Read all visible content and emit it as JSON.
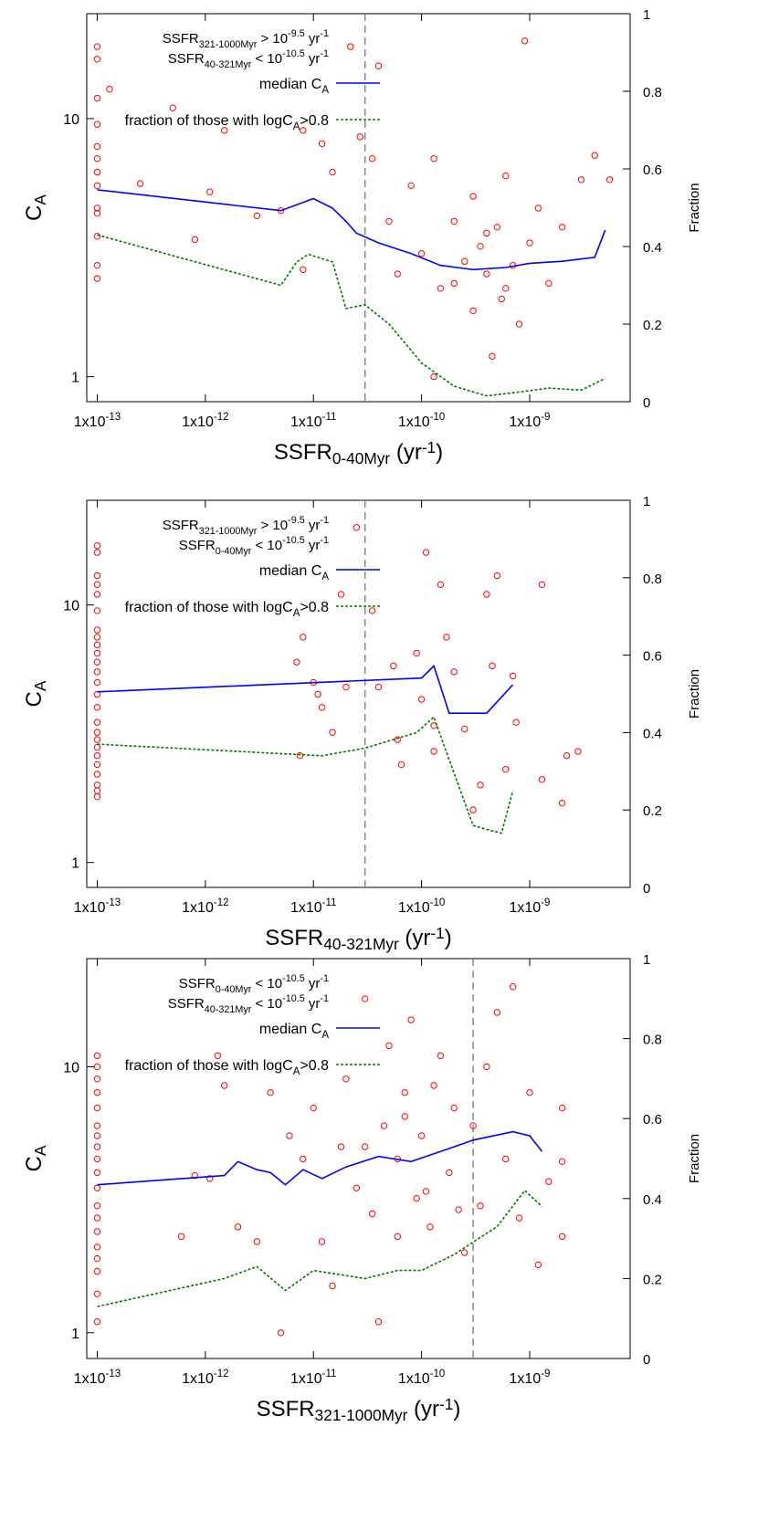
{
  "chart_data": [
    {
      "type": "scatter",
      "log_x": true,
      "log_y": true,
      "annotations": [
        [
          {
            "t": "SSFR"
          },
          {
            "sub": "321-1000Myr"
          },
          {
            "t": " > 10"
          },
          {
            "sup": "-9.5"
          },
          {
            "t": " yr"
          },
          {
            "sup": "-1"
          }
        ],
        [
          {
            "t": "SSFR"
          },
          {
            "sub": "40-321Myr"
          },
          {
            "t": " < 10"
          },
          {
            "sup": "-10.5"
          },
          {
            "t": " yr"
          },
          {
            "sup": "-1"
          }
        ]
      ],
      "xlabel": [
        {
          "t": "SSFR"
        },
        {
          "sub": "0-40Myr"
        },
        {
          "t": " (yr"
        },
        {
          "sup": "-1"
        },
        {
          "t": ")"
        }
      ],
      "ylabel": [
        {
          "t": "C"
        },
        {
          "sub": "A"
        }
      ],
      "y2label": "Fraction",
      "xlim": [
        8e-14,
        8.5e-09
      ],
      "ylim": [
        0.8,
        25.5
      ],
      "y2lim": [
        0,
        1
      ],
      "xticks": [
        {
          "value": 1e-13,
          "label": [
            {
              "t": "1x10"
            },
            {
              "sup": "-13"
            }
          ]
        },
        {
          "value": 1e-12,
          "label": [
            {
              "t": "1x10"
            },
            {
              "sup": "-12"
            }
          ]
        },
        {
          "value": 1e-11,
          "label": [
            {
              "t": "1x10"
            },
            {
              "sup": "-11"
            }
          ]
        },
        {
          "value": 1e-10,
          "label": [
            {
              "t": "1x10"
            },
            {
              "sup": "-10"
            }
          ]
        },
        {
          "value": 1e-09,
          "label": [
            {
              "t": "1x10"
            },
            {
              "sup": "-9"
            }
          ]
        }
      ],
      "yticks": [
        1,
        10
      ],
      "y2ticks": [
        0,
        0.2,
        0.4,
        0.6,
        0.8,
        1
      ],
      "vline": 3e-11,
      "series": [
        {
          "type": "scatter",
          "color": "#ff0000",
          "x": [
            1e-13,
            1e-13,
            1e-13,
            1e-13,
            1e-13,
            1e-13,
            1e-13,
            1e-13,
            1e-13,
            1e-13,
            1e-13,
            1e-13,
            1e-13,
            1.3e-13,
            2.5e-13,
            5e-13,
            8e-13,
            1.1e-12,
            1.5e-12,
            3e-12,
            5e-12,
            8e-12,
            1.2e-11,
            1.5e-11,
            2.2e-11,
            2.7e-11,
            3.5e-11,
            4e-11,
            5e-11,
            6e-11,
            8e-11,
            1e-10,
            1.3e-10,
            1.5e-10,
            2e-10,
            2.5e-10,
            3e-10,
            3.5e-10,
            4e-10,
            4.5e-10,
            5e-10,
            5.5e-10,
            6e-10,
            7e-10,
            8e-10,
            9e-10,
            1e-09,
            1.2e-09,
            1.5e-09,
            2e-09,
            3e-09,
            4e-09,
            5.5e-09,
            3e-10,
            2e-10,
            4e-10,
            6e-10,
            1.3e-10,
            8e-12
          ],
          "values": [
            19,
            17,
            12,
            9.5,
            7.8,
            7,
            6.2,
            5.5,
            4.5,
            4.3,
            3.5,
            2.7,
            2.4,
            13,
            5.6,
            11,
            3.4,
            5.2,
            9,
            4.2,
            4.4,
            9,
            8,
            6.2,
            19,
            8.5,
            7,
            16,
            4,
            2.5,
            5.5,
            3,
            7,
            2.2,
            4,
            2.8,
            1.8,
            3.2,
            2.5,
            1.2,
            3.8,
            2,
            6,
            2.7,
            1.6,
            20,
            3.3,
            4.5,
            2.3,
            3.8,
            5.8,
            7.2,
            5.8,
            5,
            2.3,
            3.6,
            2.2,
            1,
            2.6
          ]
        },
        {
          "type": "line",
          "name": [
            {
              "t": "median C"
            },
            {
              "sub": "A"
            }
          ],
          "color": "#0000ff",
          "style": "solid",
          "x": [
            1e-13,
            5e-12,
            1e-11,
            1.5e-11,
            2e-11,
            2.5e-11,
            4e-11,
            8e-11,
            1.5e-10,
            3e-10,
            6e-10,
            1e-09,
            2e-09,
            4e-09,
            5e-09
          ],
          "values": [
            5.3,
            4.4,
            4.9,
            4.5,
            4,
            3.6,
            3.3,
            3,
            2.7,
            2.6,
            2.65,
            2.75,
            2.8,
            2.9,
            3.7
          ]
        },
        {
          "type": "line",
          "axis": "y2",
          "name": [
            {
              "t": "fraction of those with logC"
            },
            {
              "sub": "A"
            },
            {
              "t": ">0.8"
            }
          ],
          "color": "#007700",
          "style": "dotted",
          "x": [
            1e-13,
            5e-12,
            7e-12,
            9e-12,
            1.5e-11,
            2e-11,
            3e-11,
            5e-11,
            1e-10,
            2e-10,
            4e-10,
            8e-10,
            1.5e-09,
            3e-09,
            5e-09
          ],
          "values": [
            0.43,
            0.3,
            0.36,
            0.38,
            0.36,
            0.24,
            0.25,
            0.2,
            0.1,
            0.04,
            0.015,
            0.025,
            0.035,
            0.03,
            0.06
          ]
        }
      ]
    },
    {
      "type": "scatter",
      "log_x": true,
      "log_y": true,
      "annotations": [
        [
          {
            "t": "SSFR"
          },
          {
            "sub": "321-1000Myr"
          },
          {
            "t": " > 10"
          },
          {
            "sup": "-9.5"
          },
          {
            "t": " yr"
          },
          {
            "sup": "-1"
          }
        ],
        [
          {
            "t": "SSFR"
          },
          {
            "sub": "0-40Myr"
          },
          {
            "t": " < 10"
          },
          {
            "sup": "-10.5"
          },
          {
            "t": " yr"
          },
          {
            "sup": "-1"
          }
        ]
      ],
      "xlabel": [
        {
          "t": "SSFR"
        },
        {
          "sub": "40-321Myr"
        },
        {
          "t": " (yr"
        },
        {
          "sup": "-1"
        },
        {
          "t": ")"
        }
      ],
      "ylabel": [
        {
          "t": "C"
        },
        {
          "sub": "A"
        }
      ],
      "y2label": "Fraction",
      "xlim": [
        8e-14,
        8.5e-09
      ],
      "ylim": [
        0.8,
        25.5
      ],
      "y2lim": [
        0,
        1
      ],
      "xticks": [
        {
          "value": 1e-13,
          "label": [
            {
              "t": "1x10"
            },
            {
              "sup": "-13"
            }
          ]
        },
        {
          "value": 1e-12,
          "label": [
            {
              "t": "1x10"
            },
            {
              "sup": "-12"
            }
          ]
        },
        {
          "value": 1e-11,
          "label": [
            {
              "t": "1x10"
            },
            {
              "sup": "-11"
            }
          ]
        },
        {
          "value": 1e-10,
          "label": [
            {
              "t": "1x10"
            },
            {
              "sup": "-10"
            }
          ]
        },
        {
          "value": 1e-09,
          "label": [
            {
              "t": "1x10"
            },
            {
              "sup": "-9"
            }
          ]
        }
      ],
      "yticks": [
        1,
        10
      ],
      "y2ticks": [
        0,
        0.2,
        0.4,
        0.6,
        0.8,
        1
      ],
      "vline": 3e-11,
      "series": [
        {
          "type": "scatter",
          "color": "#ff0000",
          "x": [
            1e-13,
            1e-13,
            1e-13,
            1e-13,
            1e-13,
            1e-13,
            1e-13,
            1e-13,
            1e-13,
            1e-13,
            1e-13,
            1e-13,
            1e-13,
            1e-13,
            1e-13,
            1e-13,
            1e-13,
            1e-13,
            1e-13,
            1e-13,
            1e-13,
            1e-13,
            1e-13,
            1e-13,
            1e-13,
            7e-12,
            7.5e-12,
            8e-12,
            1e-11,
            1.1e-11,
            1.2e-11,
            1.5e-11,
            1.8e-11,
            2e-11,
            2.5e-11,
            3.5e-11,
            4e-11,
            5.5e-11,
            6e-11,
            6.5e-11,
            9e-11,
            1e-10,
            1.1e-10,
            1.3e-10,
            1.5e-10,
            1.7e-10,
            2e-10,
            2.5e-10,
            3e-10,
            3.5e-10,
            4e-10,
            4.5e-10,
            5e-10,
            6e-10,
            7e-10,
            7.5e-10,
            1.3e-09,
            1.3e-09,
            2e-09,
            2.2e-09,
            2.8e-09,
            1.3e-10
          ],
          "values": [
            17,
            16,
            13,
            12,
            11,
            9.5,
            8,
            7.5,
            7,
            6.5,
            6,
            5.5,
            5,
            4.5,
            4,
            3.5,
            3.2,
            3,
            2.8,
            2.6,
            2.4,
            2.2,
            2,
            1.9,
            1.8,
            6,
            2.6,
            7.5,
            5,
            4.5,
            4,
            3.2,
            11,
            4.8,
            20,
            9.5,
            4.8,
            5.8,
            3,
            2.4,
            6.5,
            4.3,
            16,
            3.4,
            12,
            7.5,
            5.5,
            3.3,
            1.6,
            2,
            11,
            5.8,
            13,
            2.3,
            5.3,
            3.5,
            12,
            2.1,
            1.7,
            2.6,
            2.7,
            2.7
          ]
        },
        {
          "type": "line",
          "name": [
            {
              "t": "median C"
            },
            {
              "sub": "A"
            }
          ],
          "color": "#0000ff",
          "style": "solid",
          "x": [
            1e-13,
            1e-10,
            1.3e-10,
            1.8e-10,
            4e-10,
            7e-10
          ],
          "values": [
            4.6,
            5.2,
            5.8,
            3.8,
            3.8,
            4.9
          ]
        },
        {
          "type": "line",
          "axis": "y2",
          "name": [
            {
              "t": "fraction of those with logC"
            },
            {
              "sub": "A"
            },
            {
              "t": ">0.8"
            }
          ],
          "color": "#007700",
          "style": "dotted",
          "x": [
            1e-13,
            1.2e-11,
            3e-11,
            9e-11,
            1.3e-10,
            1.8e-10,
            3e-10,
            4e-10,
            5.5e-10,
            7e-10
          ],
          "values": [
            0.37,
            0.34,
            0.36,
            0.4,
            0.44,
            0.33,
            0.16,
            0.15,
            0.14,
            0.25
          ]
        }
      ]
    },
    {
      "type": "scatter",
      "log_x": true,
      "log_y": true,
      "annotations": [
        [
          {
            "t": "SSFR"
          },
          {
            "sub": "0-40Myr"
          },
          {
            "t": " < 10"
          },
          {
            "sup": "-10.5"
          },
          {
            "t": " yr"
          },
          {
            "sup": "-1"
          }
        ],
        [
          {
            "t": "SSFR"
          },
          {
            "sub": "40-321Myr"
          },
          {
            "t": " < 10"
          },
          {
            "sup": "-10.5"
          },
          {
            "t": " yr"
          },
          {
            "sup": "-1"
          }
        ]
      ],
      "xlabel": [
        {
          "t": "SSFR"
        },
        {
          "sub": "321-1000Myr"
        },
        {
          "t": " (yr"
        },
        {
          "sup": "-1"
        },
        {
          "t": ")"
        }
      ],
      "ylabel": [
        {
          "t": "C"
        },
        {
          "sub": "A"
        }
      ],
      "y2label": "Fraction",
      "xlim": [
        8e-14,
        8.5e-09
      ],
      "ylim": [
        0.8,
        25.5
      ],
      "y2lim": [
        0,
        1
      ],
      "xticks": [
        {
          "value": 1e-13,
          "label": [
            {
              "t": "1x10"
            },
            {
              "sup": "-13"
            }
          ]
        },
        {
          "value": 1e-12,
          "label": [
            {
              "t": "1x10"
            },
            {
              "sup": "-12"
            }
          ]
        },
        {
          "value": 1e-11,
          "label": [
            {
              "t": "1x10"
            },
            {
              "sup": "-11"
            }
          ]
        },
        {
          "value": 1e-10,
          "label": [
            {
              "t": "1x10"
            },
            {
              "sup": "-10"
            }
          ]
        },
        {
          "value": 1e-09,
          "label": [
            {
              "t": "1x10"
            },
            {
              "sup": "-9"
            }
          ]
        }
      ],
      "yticks": [
        1,
        10
      ],
      "y2ticks": [
        0,
        0.2,
        0.4,
        0.6,
        0.8,
        1
      ],
      "vline": 3e-10,
      "series": [
        {
          "type": "scatter",
          "color": "#ff0000",
          "x": [
            1e-13,
            1e-13,
            1e-13,
            1e-13,
            1e-13,
            1e-13,
            1e-13,
            1e-13,
            1e-13,
            1e-13,
            1e-13,
            1e-13,
            1e-13,
            1e-13,
            1e-13,
            1e-13,
            1e-13,
            1e-13,
            1e-13,
            6e-13,
            8e-13,
            1.1e-12,
            1.3e-12,
            1.5e-12,
            2e-12,
            3e-12,
            4e-12,
            5e-12,
            6e-12,
            8e-12,
            1e-11,
            1.2e-11,
            1.5e-11,
            2e-11,
            2.5e-11,
            3e-11,
            3.5e-11,
            4e-11,
            4.5e-11,
            5e-11,
            6e-11,
            7e-11,
            8e-11,
            9e-11,
            1e-10,
            1.2e-10,
            1.5e-10,
            1.8e-10,
            2e-10,
            2.5e-10,
            3e-10,
            3.5e-10,
            4e-10,
            5e-10,
            6e-10,
            7e-10,
            8e-10,
            1e-09,
            1.2e-09,
            1.5e-09,
            2e-09,
            2e-09,
            2e-09,
            1.8e-11,
            6e-11,
            1.1e-10,
            2.2e-10,
            3e-11,
            7e-11,
            1.3e-10
          ],
          "values": [
            11,
            10,
            9,
            8,
            7,
            6,
            5.5,
            5,
            4.5,
            4,
            3.5,
            3,
            2.7,
            2.4,
            2.1,
            1.9,
            1.7,
            1.4,
            1.1,
            2.3,
            3.9,
            3.8,
            11,
            8.5,
            2.5,
            2.2,
            8,
            1,
            5.5,
            4.5,
            7,
            2.2,
            1.5,
            9,
            3.5,
            18,
            2.8,
            1.1,
            6,
            12,
            2.3,
            8,
            15,
            3.2,
            5.5,
            2.5,
            11,
            4,
            7,
            2,
            6,
            3,
            10,
            16,
            4.5,
            20,
            2.7,
            8,
            1.8,
            3.7,
            7,
            4.4,
            2.3,
            5,
            4.5,
            3.4,
            2.9,
            5,
            6.5,
            8.5
          ]
        },
        {
          "type": "line",
          "name": [
            {
              "t": "median C"
            },
            {
              "sub": "A"
            }
          ],
          "color": "#0000ff",
          "style": "solid",
          "x": [
            1e-13,
            1.5e-12,
            2e-12,
            3e-12,
            4e-12,
            5.5e-12,
            8e-12,
            1.2e-11,
            2e-11,
            4e-11,
            8e-11,
            1.5e-10,
            3e-10,
            7e-10,
            1e-09,
            1.3e-09
          ],
          "values": [
            3.6,
            3.9,
            4.4,
            4.1,
            4,
            3.6,
            4.1,
            3.8,
            4.2,
            4.6,
            4.4,
            4.8,
            5.3,
            5.7,
            5.5,
            4.8
          ]
        },
        {
          "type": "line",
          "axis": "y2",
          "name": [
            {
              "t": "fraction of those with logC"
            },
            {
              "sub": "A"
            },
            {
              "t": ">0.8"
            }
          ],
          "color": "#007700",
          "style": "dotted",
          "x": [
            1e-13,
            1.5e-12,
            3e-12,
            5.5e-12,
            1e-11,
            3e-11,
            6e-11,
            1e-10,
            2e-10,
            5e-10,
            9e-10,
            1.3e-09
          ],
          "values": [
            0.13,
            0.2,
            0.23,
            0.17,
            0.22,
            0.2,
            0.22,
            0.22,
            0.26,
            0.33,
            0.42,
            0.38
          ]
        }
      ]
    }
  ]
}
